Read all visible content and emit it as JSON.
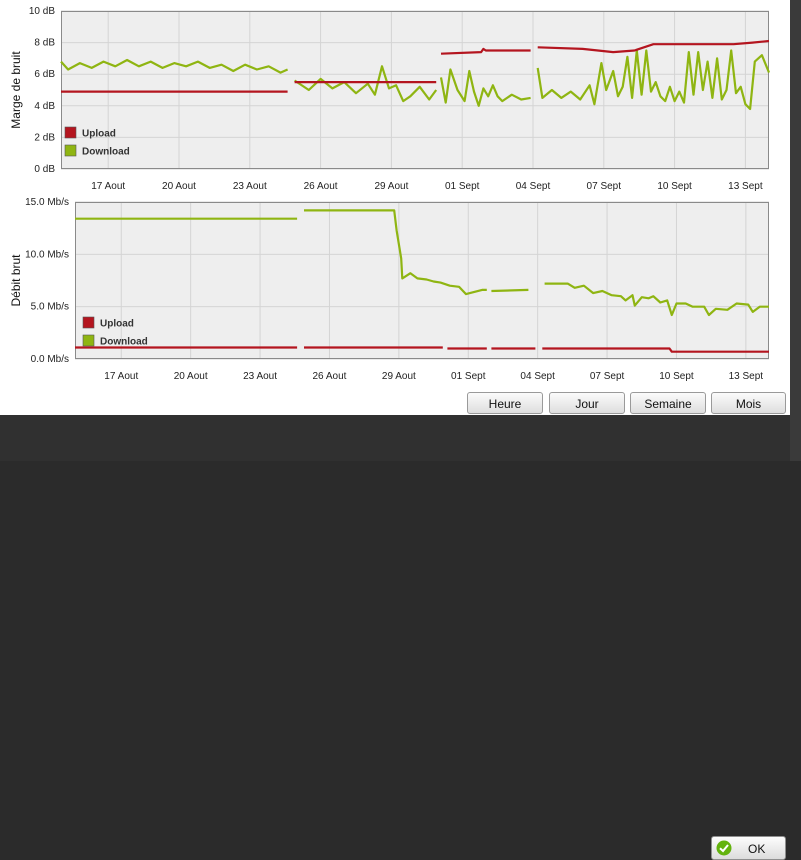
{
  "colors": {
    "upload": "#b4151f",
    "download": "#8fb512",
    "plot_bg": "#eeeeee",
    "grid": "#d4d4d4",
    "ok_icon": "#63b30e"
  },
  "buttons": {
    "heure": "Heure",
    "jour": "Jour",
    "semaine": "Semaine",
    "mois": "Mois",
    "ok": "OK"
  },
  "icons": {
    "ok": "checkmark-circle-icon"
  },
  "chart_data": [
    {
      "type": "line",
      "ylabel": "Marge de bruit",
      "unit": "dB",
      "ylim": [
        0,
        10
      ],
      "yticks": [
        {
          "v": 0,
          "label": "0 dB"
        },
        {
          "v": 2,
          "label": "2 dB"
        },
        {
          "v": 4,
          "label": "4 dB"
        },
        {
          "v": 6,
          "label": "6 dB"
        },
        {
          "v": 8,
          "label": "8 dB"
        },
        {
          "v": 10,
          "label": "10 dB"
        }
      ],
      "xlim": [
        0,
        30
      ],
      "xticks": [
        {
          "v": 2,
          "label": "17 Aout"
        },
        {
          "v": 5,
          "label": "20 Aout"
        },
        {
          "v": 8,
          "label": "23 Aout"
        },
        {
          "v": 11,
          "label": "26 Aout"
        },
        {
          "v": 14,
          "label": "29 Aout"
        },
        {
          "v": 17,
          "label": "01 Sept"
        },
        {
          "v": 20,
          "label": "04 Sept"
        },
        {
          "v": 23,
          "label": "07 Sept"
        },
        {
          "v": 26,
          "label": "10 Sept"
        },
        {
          "v": 29,
          "label": "13 Sept"
        }
      ],
      "grid": true,
      "legend": "bottom-left",
      "series": [
        {
          "name": "Upload",
          "segments": [
            [
              [
                0,
                4.9
              ],
              [
                9.6,
                4.9
              ]
            ],
            [
              [
                9.9,
                5.5
              ],
              [
                15.9,
                5.5
              ]
            ],
            [
              [
                16.1,
                7.3
              ],
              [
                17.8,
                7.4
              ],
              [
                17.9,
                7.6
              ],
              [
                18,
                7.5
              ],
              [
                19.9,
                7.5
              ]
            ],
            [
              [
                20.2,
                7.7
              ],
              [
                22.1,
                7.6
              ],
              [
                23.4,
                7.4
              ],
              [
                24.3,
                7.5
              ],
              [
                25.1,
                7.9
              ],
              [
                27.5,
                7.9
              ],
              [
                28.5,
                7.9
              ],
              [
                29.3,
                8.0
              ],
              [
                30,
                8.1
              ]
            ]
          ]
        },
        {
          "name": "Download",
          "segments": [
            [
              [
                0,
                6.8
              ],
              [
                0.3,
                6.3
              ],
              [
                0.8,
                6.7
              ],
              [
                1.3,
                6.4
              ],
              [
                1.8,
                6.8
              ],
              [
                2.3,
                6.5
              ],
              [
                2.8,
                6.9
              ],
              [
                3.3,
                6.5
              ],
              [
                3.8,
                6.8
              ],
              [
                4.3,
                6.4
              ],
              [
                4.8,
                6.7
              ],
              [
                5.3,
                6.5
              ],
              [
                5.8,
                6.8
              ],
              [
                6.3,
                6.4
              ],
              [
                6.8,
                6.6
              ],
              [
                7.3,
                6.2
              ],
              [
                7.8,
                6.6
              ],
              [
                8.3,
                6.3
              ],
              [
                8.8,
                6.5
              ],
              [
                9.3,
                6.1
              ],
              [
                9.6,
                6.3
              ]
            ],
            [
              [
                9.9,
                5.6
              ],
              [
                10.5,
                5.0
              ],
              [
                11,
                5.7
              ],
              [
                11.5,
                5.1
              ],
              [
                12,
                5.5
              ],
              [
                12.5,
                4.8
              ],
              [
                13,
                5.4
              ],
              [
                13.3,
                4.7
              ],
              [
                13.6,
                6.5
              ],
              [
                13.9,
                5.1
              ],
              [
                14.2,
                5.3
              ],
              [
                14.5,
                4.3
              ],
              [
                14.8,
                4.6
              ],
              [
                15.2,
                5.2
              ],
              [
                15.6,
                4.4
              ],
              [
                15.9,
                5.0
              ]
            ],
            [
              [
                16.1,
                5.8
              ],
              [
                16.3,
                4.2
              ],
              [
                16.5,
                6.3
              ],
              [
                16.8,
                5.0
              ],
              [
                17.1,
                4.3
              ],
              [
                17.3,
                6.2
              ],
              [
                17.5,
                4.9
              ],
              [
                17.7,
                4.0
              ],
              [
                17.9,
                5.1
              ],
              [
                18.1,
                4.6
              ],
              [
                18.3,
                5.3
              ],
              [
                18.5,
                4.6
              ],
              [
                18.7,
                4.3
              ],
              [
                19.1,
                4.7
              ],
              [
                19.5,
                4.4
              ],
              [
                19.9,
                4.5
              ]
            ],
            [
              [
                20.2,
                6.4
              ],
              [
                20.4,
                4.5
              ],
              [
                20.8,
                5.0
              ],
              [
                21.2,
                4.5
              ],
              [
                21.6,
                4.9
              ],
              [
                22,
                4.4
              ],
              [
                22.4,
                5.3
              ],
              [
                22.6,
                4.1
              ],
              [
                22.9,
                6.7
              ],
              [
                23.1,
                5.0
              ],
              [
                23.4,
                6.2
              ],
              [
                23.6,
                4.6
              ],
              [
                23.8,
                5.2
              ],
              [
                24,
                7.1
              ],
              [
                24.2,
                4.5
              ],
              [
                24.4,
                7.5
              ],
              [
                24.6,
                4.7
              ],
              [
                24.8,
                7.5
              ],
              [
                25,
                4.9
              ],
              [
                25.2,
                5.5
              ],
              [
                25.4,
                4.6
              ],
              [
                25.6,
                4.3
              ],
              [
                25.8,
                5.2
              ],
              [
                26,
                4.3
              ],
              [
                26.2,
                4.9
              ],
              [
                26.4,
                4.2
              ],
              [
                26.6,
                7.4
              ],
              [
                26.8,
                4.7
              ],
              [
                27,
                7.4
              ],
              [
                27.2,
                5.0
              ],
              [
                27.4,
                6.8
              ],
              [
                27.6,
                4.5
              ],
              [
                27.8,
                7.0
              ],
              [
                28,
                4.4
              ],
              [
                28.2,
                5.0
              ],
              [
                28.4,
                7.5
              ],
              [
                28.6,
                4.8
              ],
              [
                28.8,
                5.2
              ],
              [
                29,
                4.1
              ],
              [
                29.2,
                3.8
              ],
              [
                29.4,
                6.8
              ],
              [
                29.7,
                7.2
              ],
              [
                30,
                6.1
              ]
            ]
          ]
        }
      ]
    },
    {
      "type": "line",
      "ylabel": "Débit brut",
      "unit": "Mb/s",
      "ylim": [
        0,
        15
      ],
      "yticks": [
        {
          "v": 0,
          "label": "0.0 Mb/s"
        },
        {
          "v": 5,
          "label": "5.0 Mb/s"
        },
        {
          "v": 10,
          "label": "10.0 Mb/s"
        },
        {
          "v": 15,
          "label": "15.0 Mb/s"
        }
      ],
      "xlim": [
        0,
        30
      ],
      "xticks": [
        {
          "v": 2,
          "label": "17 Aout"
        },
        {
          "v": 5,
          "label": "20 Aout"
        },
        {
          "v": 8,
          "label": "23 Aout"
        },
        {
          "v": 11,
          "label": "26 Aout"
        },
        {
          "v": 14,
          "label": "29 Aout"
        },
        {
          "v": 17,
          "label": "01 Sept"
        },
        {
          "v": 20,
          "label": "04 Sept"
        },
        {
          "v": 23,
          "label": "07 Sept"
        },
        {
          "v": 26,
          "label": "10 Sept"
        },
        {
          "v": 29,
          "label": "13 Sept"
        }
      ],
      "grid": true,
      "legend": "bottom-left",
      "series": [
        {
          "name": "Upload",
          "segments": [
            [
              [
                0,
                1.1
              ],
              [
                9.6,
                1.1
              ]
            ],
            [
              [
                9.9,
                1.1
              ],
              [
                15.9,
                1.1
              ]
            ],
            [
              [
                16.1,
                1.0
              ],
              [
                17.8,
                1.0
              ]
            ],
            [
              [
                18,
                1.0
              ],
              [
                19.9,
                1.0
              ]
            ],
            [
              [
                20.2,
                1.0
              ],
              [
                25.7,
                1.0
              ],
              [
                25.8,
                0.7
              ],
              [
                30,
                0.7
              ]
            ]
          ]
        },
        {
          "name": "Download",
          "segments": [
            [
              [
                0,
                13.4
              ],
              [
                9.6,
                13.4
              ]
            ],
            [
              [
                9.9,
                14.2
              ],
              [
                13.8,
                14.2
              ],
              [
                13.9,
                12.3
              ],
              [
                14.1,
                9.6
              ],
              [
                14.15,
                7.7
              ],
              [
                14.5,
                8.2
              ],
              [
                14.8,
                7.7
              ],
              [
                15.2,
                7.6
              ],
              [
                15.5,
                7.4
              ],
              [
                15.8,
                7.3
              ],
              [
                16.2,
                7.0
              ],
              [
                16.6,
                6.9
              ],
              [
                16.9,
                6.2
              ],
              [
                17.6,
                6.6
              ],
              [
                17.8,
                6.6
              ]
            ],
            [
              [
                18,
                6.5
              ],
              [
                19.6,
                6.6
              ]
            ],
            [
              [
                20.3,
                7.2
              ],
              [
                21.3,
                7.2
              ],
              [
                21.6,
                6.8
              ],
              [
                22,
                7.0
              ],
              [
                22.4,
                6.3
              ],
              [
                22.8,
                6.5
              ],
              [
                23.2,
                6.1
              ],
              [
                23.6,
                6.0
              ],
              [
                23.8,
                5.6
              ],
              [
                24.1,
                6.1
              ],
              [
                24.2,
                5.1
              ],
              [
                24.5,
                5.9
              ],
              [
                24.8,
                5.8
              ],
              [
                25,
                6.0
              ],
              [
                25.3,
                5.4
              ],
              [
                25.6,
                5.6
              ],
              [
                25.8,
                4.2
              ],
              [
                26,
                5.3
              ],
              [
                26.4,
                5.3
              ],
              [
                26.7,
                5.0
              ],
              [
                27.2,
                5.0
              ],
              [
                27.4,
                4.2
              ],
              [
                27.7,
                4.8
              ],
              [
                28.2,
                4.7
              ],
              [
                28.6,
                5.3
              ],
              [
                29.1,
                5.2
              ],
              [
                29.3,
                4.5
              ],
              [
                29.6,
                5.0
              ],
              [
                30,
                5.0
              ]
            ]
          ]
        }
      ]
    }
  ]
}
